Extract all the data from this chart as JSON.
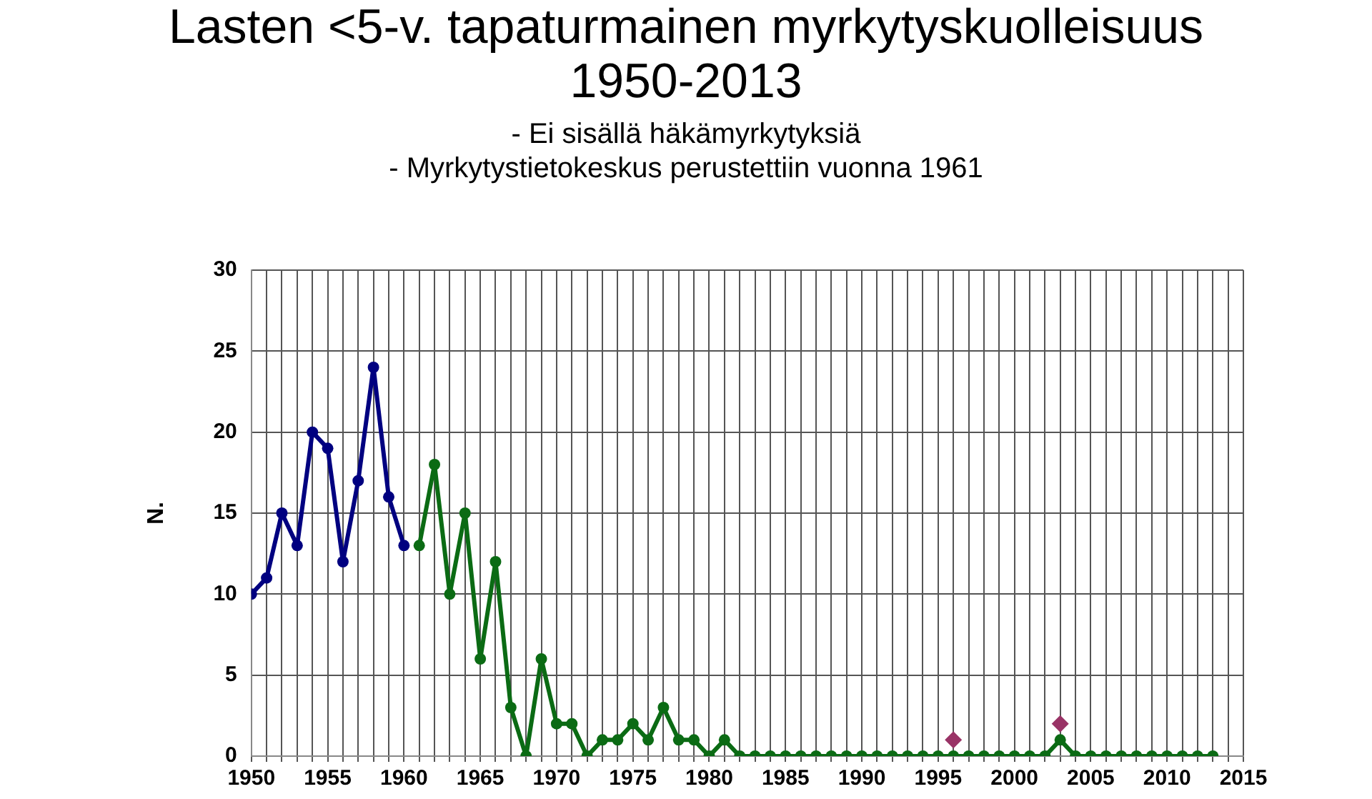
{
  "chart_data": {
    "type": "line",
    "title": "Lasten <5-v. tapaturmainen myrkytyskuolleisuus 1950-2013",
    "subtitle": "- Ei sisällä häkämyrkytyksiä",
    "annotations": [
      "- Myrkytystietokeskus perustettiin vuonna 1961"
    ],
    "ylabel": "N.",
    "series": [
      {
        "color": "#000080",
        "x": [
          1950,
          1951,
          1952,
          1953,
          1954,
          1955,
          1956,
          1957,
          1958,
          1959,
          1960
        ],
        "values": [
          10,
          11,
          15,
          13,
          20,
          19,
          12,
          17,
          24,
          16,
          13
        ]
      },
      {
        "color": "#0b6b14",
        "x": [
          1961,
          1962,
          1963,
          1964,
          1965,
          1966,
          1967,
          1968,
          1969,
          1970,
          1971,
          1972,
          1973,
          1974,
          1975,
          1976,
          1977,
          1978,
          1979,
          1980,
          1981,
          1982,
          1983,
          1984,
          1985,
          1986,
          1987,
          1988,
          1989,
          1990,
          1991,
          1992,
          1993,
          1994,
          1995,
          1996,
          1997,
          1998,
          1999,
          2000,
          2001,
          2002,
          2003,
          2004,
          2005,
          2006,
          2007,
          2008,
          2009,
          2010,
          2011,
          2012,
          2013
        ],
        "values": [
          13,
          18,
          10,
          15,
          6,
          12,
          3,
          0,
          6,
          2,
          2,
          0,
          1,
          1,
          2,
          1,
          3,
          1,
          1,
          0,
          1,
          0,
          0,
          0,
          0,
          0,
          0,
          0,
          0,
          0,
          0,
          0,
          0,
          0,
          0,
          0,
          0,
          0,
          0,
          0,
          0,
          0,
          1,
          0,
          0,
          0,
          0,
          0,
          0,
          0,
          0,
          0,
          0
        ]
      },
      {
        "type": "scatter",
        "marker": "diamond",
        "color": "#993366",
        "x": [
          1996,
          2003
        ],
        "values": [
          1,
          2
        ]
      }
    ],
    "marker": "circle",
    "line_style": "solid",
    "grid": true,
    "legend": false,
    "xlim": [
      1950,
      2015
    ],
    "ylim": [
      0,
      30
    ],
    "yticks": [
      0,
      5,
      10,
      15,
      20,
      25,
      30
    ],
    "xticks": [
      1950,
      {
        "value": 1951,
        "label": null
      },
      {
        "value": 1952,
        "label": null
      },
      {
        "value": 1953,
        "label": null
      },
      {
        "value": 1954,
        "label": null
      },
      1955,
      {
        "value": 1956,
        "label": null
      },
      {
        "value": 1957,
        "label": null
      },
      {
        "value": 1958,
        "label": null
      },
      {
        "value": 1959,
        "label": null
      },
      1960,
      {
        "value": 1961,
        "label": null
      },
      {
        "value": 1962,
        "label": null
      },
      {
        "value": 1963,
        "label": null
      },
      {
        "value": 1964,
        "label": null
      },
      1965,
      {
        "value": 1966,
        "label": null
      },
      {
        "value": 1967,
        "label": null
      },
      {
        "value": 1968,
        "label": null
      },
      {
        "value": 1969,
        "label": null
      },
      1970,
      {
        "value": 1971,
        "label": null
      },
      {
        "value": 1972,
        "label": null
      },
      {
        "value": 1973,
        "label": null
      },
      {
        "value": 1974,
        "label": null
      },
      1975,
      {
        "value": 1976,
        "label": null
      },
      {
        "value": 1977,
        "label": null
      },
      {
        "value": 1978,
        "label": null
      },
      {
        "value": 1979,
        "label": null
      },
      1980,
      {
        "value": 1981,
        "label": null
      },
      {
        "value": 1982,
        "label": null
      },
      {
        "value": 1983,
        "label": null
      },
      {
        "value": 1984,
        "label": null
      },
      1985,
      {
        "value": 1986,
        "label": null
      },
      {
        "value": 1987,
        "label": null
      },
      {
        "value": 1988,
        "label": null
      },
      {
        "value": 1989,
        "label": null
      },
      1990,
      {
        "value": 1991,
        "label": null
      },
      {
        "value": 1992,
        "label": null
      },
      {
        "value": 1993,
        "label": null
      },
      {
        "value": 1994,
        "label": null
      },
      1995,
      {
        "value": 1996,
        "label": null
      },
      {
        "value": 1997,
        "label": null
      },
      {
        "value": 1998,
        "label": null
      },
      {
        "value": 1999,
        "label": null
      },
      2000,
      {
        "value": 2001,
        "label": null
      },
      {
        "value": 2002,
        "label": null
      },
      {
        "value": 2003,
        "label": null
      },
      {
        "value": 2004,
        "label": null
      },
      2005,
      {
        "value": 2006,
        "label": null
      },
      {
        "value": 2007,
        "label": null
      },
      {
        "value": 2008,
        "label": null
      },
      {
        "value": 2009,
        "label": null
      },
      2010,
      {
        "value": 2011,
        "label": null
      },
      {
        "value": 2012,
        "label": null
      },
      {
        "value": 2013,
        "label": null
      },
      {
        "value": 2014,
        "label": null
      },
      2015
    ]
  }
}
